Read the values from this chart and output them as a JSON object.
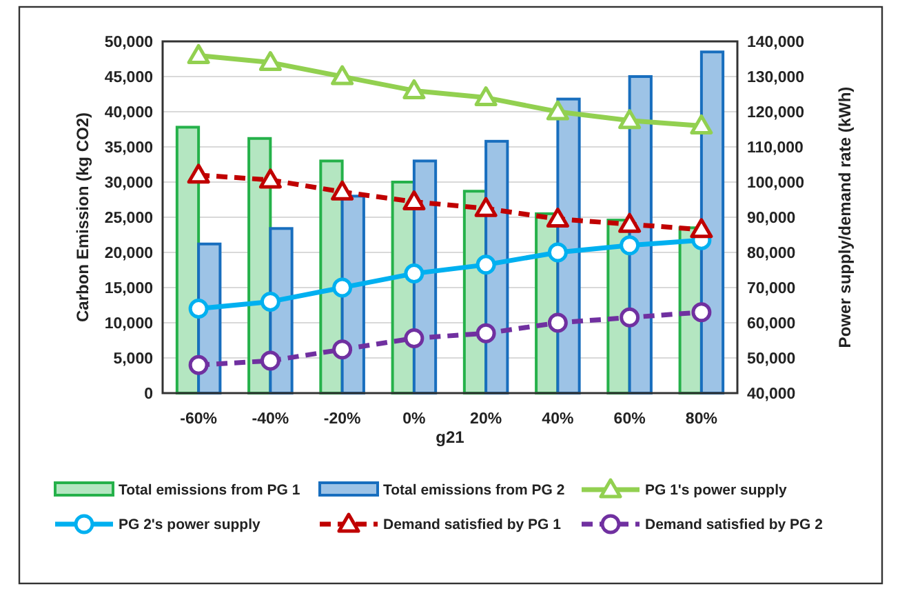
{
  "chart_data": {
    "type": "bar",
    "xlabel": "g21",
    "ylabel": "Carbon Emission (kg CO2)",
    "y2label": "Power supply/demand rate (kWh)",
    "categories": [
      "-60%",
      "-40%",
      "-20%",
      "0%",
      "20%",
      "40%",
      "60%",
      "80%"
    ],
    "series": [
      {
        "name": "Total emissions from PG 1",
        "color": "#b4e6c1",
        "values": [
          37800,
          36200,
          33000,
          30000,
          28700,
          25500,
          24600,
          23500
        ]
      },
      {
        "name": "Total emissions from PG 2",
        "color": "#9dc3e6",
        "values": [
          21200,
          23400,
          28000,
          33000,
          35800,
          41800,
          45000,
          48500
        ]
      },
      {
        "name": "PG 1's power supply",
        "type": "line",
        "axis": "y2",
        "color": "#92d050",
        "marker": "triangle",
        "line_style": "solid",
        "values": [
          136000,
          134000,
          130000,
          126000,
          124000,
          120000,
          117500,
          116000
        ]
      },
      {
        "name": "PG 2's power supply",
        "type": "line",
        "axis": "y2",
        "color": "#00b0f0",
        "marker": "circle",
        "line_style": "solid",
        "values": [
          64000,
          66000,
          70000,
          74000,
          76500,
          80000,
          82000,
          83500
        ]
      },
      {
        "name": "Demand satisfied by PG 1",
        "type": "line",
        "axis": "y2",
        "color": "#c00000",
        "marker": "triangle",
        "line_style": "dashed",
        "values": [
          102000,
          100600,
          97200,
          94400,
          92500,
          89500,
          88000,
          86500
        ]
      },
      {
        "name": "Demand satisfied by PG 2",
        "type": "line",
        "axis": "y2",
        "color": "#7030a0",
        "marker": "circle",
        "line_style": "dashed",
        "values": [
          48000,
          49200,
          52400,
          55600,
          57000,
          60000,
          61500,
          63000
        ]
      }
    ],
    "ylim": [
      0,
      50000
    ],
    "yticks": [
      {
        "value": 0,
        "label": "0"
      },
      {
        "value": 5000,
        "label": "5,000"
      },
      {
        "value": 10000,
        "label": "10,000"
      },
      {
        "value": 15000,
        "label": "15,000"
      },
      {
        "value": 20000,
        "label": "20,000"
      },
      {
        "value": 25000,
        "label": "25,000"
      },
      {
        "value": 30000,
        "label": "30,000"
      },
      {
        "value": 35000,
        "label": "35,000"
      },
      {
        "value": 40000,
        "label": "40,000"
      },
      {
        "value": 45000,
        "label": "45,000"
      },
      {
        "value": 50000,
        "label": "50,000"
      }
    ],
    "y2lim": [
      40000,
      140000
    ],
    "y2ticks": [
      {
        "value": 40000,
        "label": "40,000"
      },
      {
        "value": 50000,
        "label": "50,000"
      },
      {
        "value": 60000,
        "label": "60,000"
      },
      {
        "value": 70000,
        "label": "70,000"
      },
      {
        "value": 80000,
        "label": "80,000"
      },
      {
        "value": 90000,
        "label": "90,000"
      },
      {
        "value": 100000,
        "label": "100,000"
      },
      {
        "value": 110000,
        "label": "110,000"
      },
      {
        "value": 120000,
        "label": "120,000"
      },
      {
        "value": 130000,
        "label": "130,000"
      },
      {
        "value": 140000,
        "label": "140,000"
      }
    ],
    "grid": "y",
    "legend": "bottom"
  }
}
